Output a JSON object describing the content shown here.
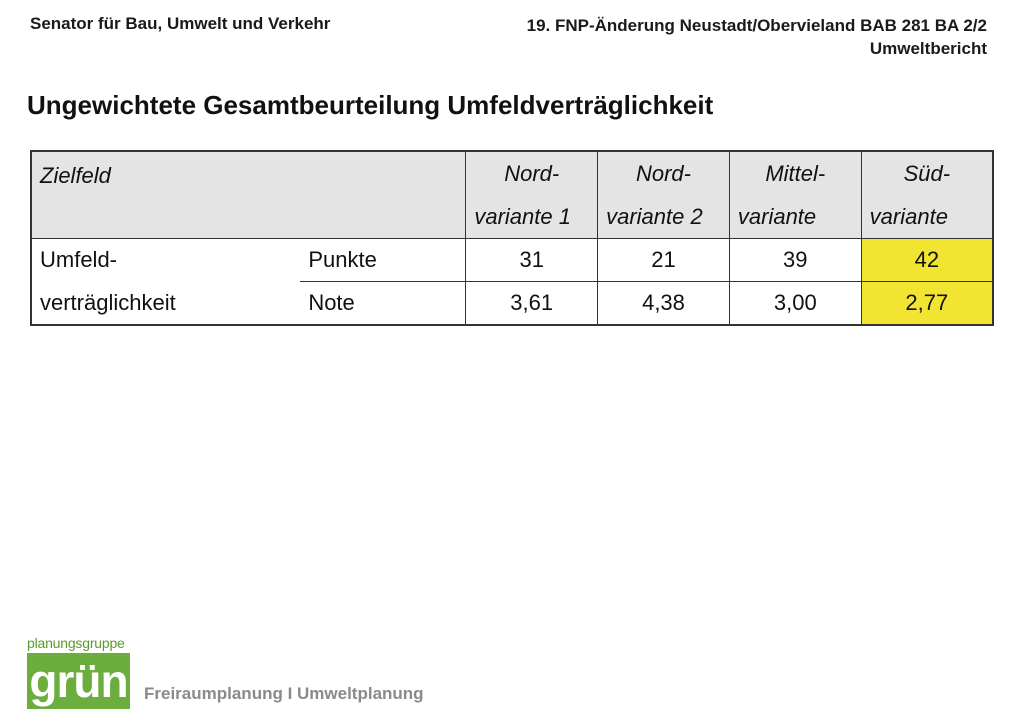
{
  "header": {
    "left": "Senator für Bau, Umwelt und Verkehr",
    "right_line1": "19. FNP-Änderung Neustadt/Obervieland BAB 281 BA 2/2",
    "right_line2": "Umweltbericht"
  },
  "title": "Ungewichtete Gesamtbeurteilung Umfeldverträglichkeit",
  "table": {
    "head_label": "Zielfeld",
    "columns": [
      {
        "line1": "Nord-",
        "line2": "variante 1"
      },
      {
        "line1": "Nord-",
        "line2": "variante 2"
      },
      {
        "line1": "Mittel-",
        "line2": "variante"
      },
      {
        "line1": "Süd-",
        "line2": "variante"
      }
    ],
    "row_label_line1": "Umfeld-",
    "row_label_line2": "verträglichkeit",
    "rows": [
      {
        "label": "Punkte",
        "values": [
          "31",
          "21",
          "39",
          "42"
        ]
      },
      {
        "label": "Note",
        "values": [
          "3,61",
          "4,38",
          "3,00",
          "2,77"
        ]
      }
    ],
    "highlight_color": "#f2e531"
  },
  "logo": {
    "top": "planungsgruppe",
    "main": "grün"
  },
  "footer": "Freiraumplanung I Umweltplanung"
}
